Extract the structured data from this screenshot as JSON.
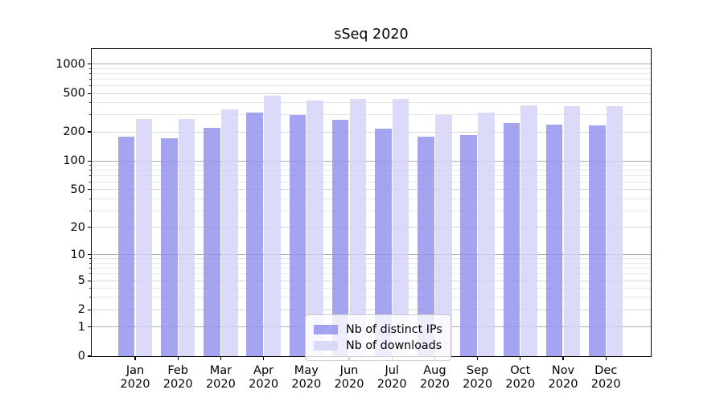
{
  "chart_data": {
    "type": "bar",
    "title": "sSeq 2020",
    "categories": [
      "Jan",
      "Feb",
      "Mar",
      "Apr",
      "May",
      "Jun",
      "Jul",
      "Aug",
      "Sep",
      "Oct",
      "Nov",
      "Dec"
    ],
    "category_year": "2020",
    "series": [
      {
        "name": "Nb of distinct IPs",
        "color": "#9393ee",
        "values": [
          178,
          172,
          220,
          320,
          300,
          267,
          216,
          178,
          184,
          248,
          239,
          232
        ]
      },
      {
        "name": "Nb of downloads",
        "color": "#d4d4f8",
        "values": [
          270,
          270,
          345,
          475,
          420,
          440,
          440,
          297,
          320,
          380,
          371,
          371
        ]
      }
    ],
    "yscale": "symlog",
    "yticks": [
      0,
      1,
      2,
      5,
      10,
      20,
      50,
      100,
      200,
      500,
      1000
    ],
    "ylim": [
      0,
      1400
    ],
    "grid": true,
    "legend_position": "lower center, inside plot"
  }
}
